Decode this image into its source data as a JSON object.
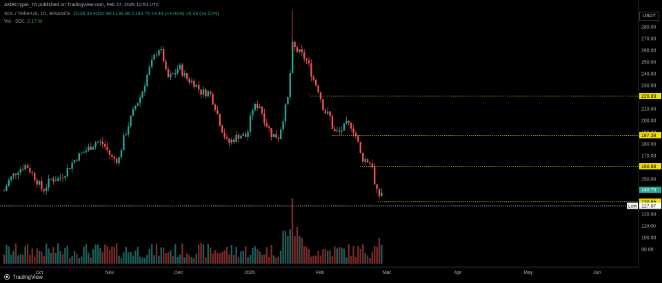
{
  "header": {
    "published": "AMBCrypto_TA published on TradingView.com, Feb 27, 2025 12:51 UTC",
    "symbol": "SOL / TetherUS, 1D, BINANCE",
    "ohlc": "O135.33 H142.90 L134.96 C140.75 +5.43 (+4.01%) +5.43 (+4.01%)",
    "vol_label": "Vol · SOL",
    "vol_value": "2.17 M"
  },
  "price_axis": {
    "currency": "USDT",
    "ticks": [
      "280.00",
      "270.00",
      "260.00",
      "250.00",
      "240.00",
      "230.00",
      "220.00",
      "210.00",
      "200.00",
      "190.00",
      "180.00",
      "170.00",
      "160.00",
      "150.00",
      "140.00",
      "130.00",
      "120.00",
      "110.00",
      "100.00",
      "90.00"
    ]
  },
  "time_axis": {
    "labels": [
      "Oct",
      "Nov",
      "Dec",
      "2025",
      "Feb",
      "Mar",
      "Apr",
      "May",
      "Jun"
    ]
  },
  "levels": [
    {
      "value": "220.89",
      "label": "220.89",
      "style": "yellow"
    },
    {
      "value": "187.39",
      "label": "187.39",
      "style": "yellow"
    },
    {
      "value": "160.88",
      "label": "160.88",
      "style": "yellow"
    },
    {
      "value": "130.65",
      "label": "130.65",
      "style": "yellow"
    },
    {
      "value": "127.07",
      "label": "127.07",
      "style": "low",
      "prefix": "Low"
    }
  ],
  "current_price": {
    "label": "140.75",
    "color": "#26a69a"
  },
  "colors": {
    "up": "#26a69a",
    "down": "#ef5350",
    "level": "#f0e000",
    "vol_up": "#1c5e5a",
    "vol_down": "#7a2a2a"
  },
  "footer": {
    "brand": "TradingView"
  }
}
